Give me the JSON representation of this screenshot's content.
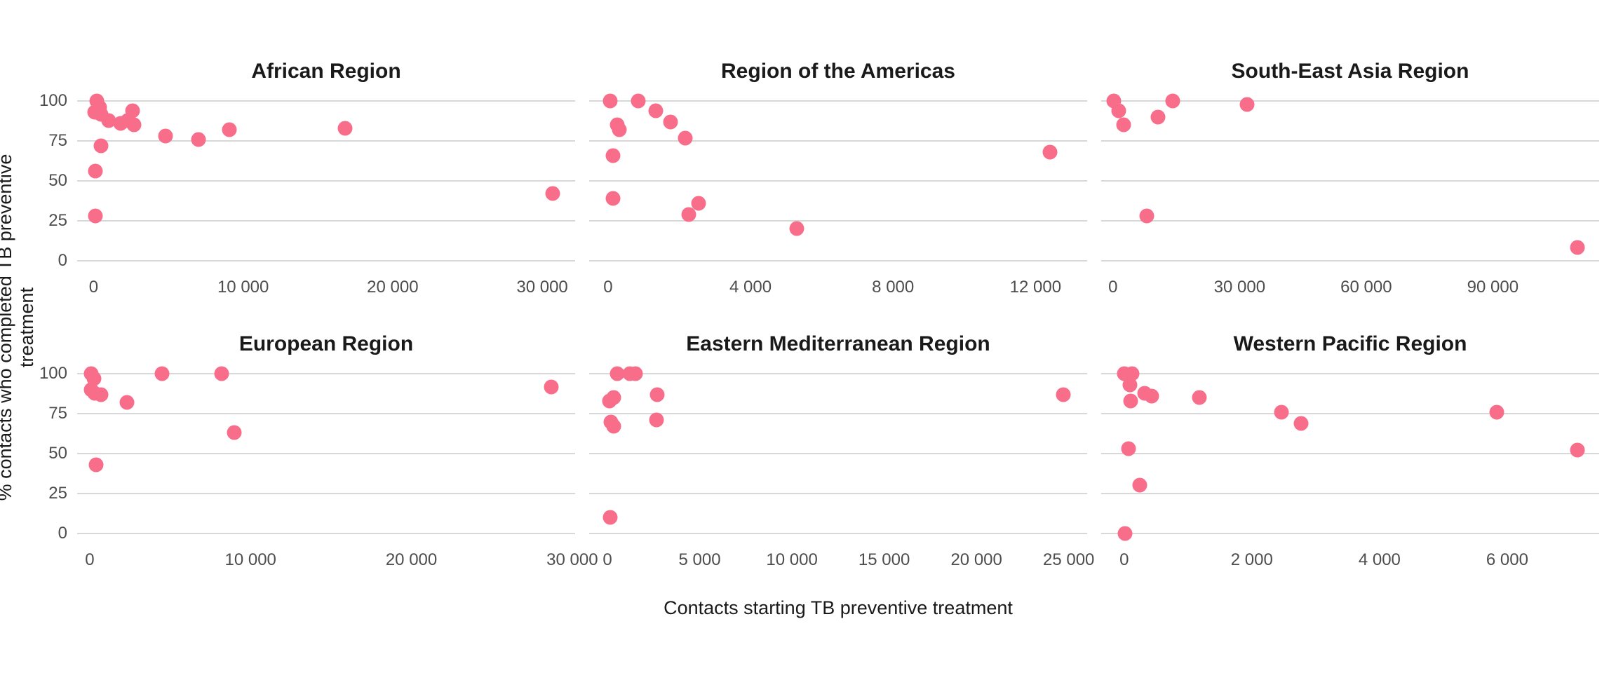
{
  "figure": {
    "x_axis_title": "Contacts starting TB preventive treatment",
    "y_axis_title": "% contacts who completed TB preventive treatment",
    "background_color": "#FFFFFF",
    "point_color": "#F86E8A",
    "gridline_color": "#D8D8D8",
    "title_color": "#1A1A1A",
    "tick_label_color": "#4D4D4D",
    "grid": "horizontal-only",
    "legend": "none"
  },
  "chart_data": [
    {
      "type": "scatter",
      "title": "African Region",
      "xlim": [
        -1100,
        32200
      ],
      "ylim": [
        -5,
        105
      ],
      "x_ticks": [
        0,
        10000,
        20000,
        30000
      ],
      "x_tick_labels": [
        "0",
        "10 000",
        "20 000",
        "30 000"
      ],
      "y_ticks": [
        0,
        25,
        50,
        75,
        100
      ],
      "y_tick_labels": [
        "0",
        "25",
        "50",
        "75",
        "100"
      ],
      "points": [
        [
          200,
          100
        ],
        [
          400,
          96
        ],
        [
          50,
          93
        ],
        [
          500,
          92
        ],
        [
          1000,
          88
        ],
        [
          1800,
          86
        ],
        [
          2300,
          88
        ],
        [
          2600,
          94
        ],
        [
          2700,
          85
        ],
        [
          500,
          72
        ],
        [
          100,
          56
        ],
        [
          100,
          28
        ],
        [
          4800,
          78
        ],
        [
          7000,
          76
        ],
        [
          9100,
          82
        ],
        [
          16800,
          83
        ],
        [
          30700,
          42
        ]
      ]
    },
    {
      "type": "scatter",
      "title": "Region of the Americas",
      "xlim": [
        -530,
        13450
      ],
      "ylim": [
        -5,
        105
      ],
      "x_ticks": [
        0,
        4000,
        8000,
        12000
      ],
      "x_tick_labels": [
        "0",
        "4 000",
        "8 000",
        "12 000"
      ],
      "y_ticks": [
        0,
        25,
        50,
        75,
        100
      ],
      "y_tick_labels": [
        "0",
        "25",
        "50",
        "75",
        "100"
      ],
      "points": [
        [
          70,
          100
        ],
        [
          850,
          100
        ],
        [
          1350,
          94
        ],
        [
          1750,
          87
        ],
        [
          2160,
          77
        ],
        [
          260,
          85
        ],
        [
          320,
          82
        ],
        [
          130,
          66
        ],
        [
          130,
          39
        ],
        [
          2260,
          29
        ],
        [
          2550,
          36
        ],
        [
          5300,
          20
        ],
        [
          12400,
          68
        ]
      ]
    },
    {
      "type": "scatter",
      "title": "South-East Asia Region",
      "xlim": [
        -2800,
        115200
      ],
      "ylim": [
        -5,
        105
      ],
      "x_ticks": [
        0,
        30000,
        60000,
        90000
      ],
      "x_tick_labels": [
        "0",
        "30 000",
        "60 000",
        "90 000"
      ],
      "y_ticks": [
        0,
        25,
        50,
        75,
        100
      ],
      "y_tick_labels": [
        "0",
        "25",
        "50",
        "75",
        "100"
      ],
      "points": [
        [
          200,
          100
        ],
        [
          1300,
          94
        ],
        [
          2500,
          85
        ],
        [
          10600,
          90
        ],
        [
          14200,
          100
        ],
        [
          31800,
          98
        ],
        [
          8000,
          28
        ],
        [
          110000,
          8
        ]
      ]
    },
    {
      "type": "scatter",
      "title": "European Region",
      "xlim": [
        -780,
        30180
      ],
      "ylim": [
        -5,
        105
      ],
      "x_ticks": [
        0,
        10000,
        20000,
        30000
      ],
      "x_tick_labels": [
        "0",
        "10 000",
        "20 000",
        "30 000"
      ],
      "y_ticks": [
        0,
        25,
        50,
        75,
        100
      ],
      "y_tick_labels": [
        "0",
        "25",
        "50",
        "75",
        "100"
      ],
      "points": [
        [
          100,
          100
        ],
        [
          250,
          97
        ],
        [
          100,
          90
        ],
        [
          300,
          88
        ],
        [
          700,
          87
        ],
        [
          2300,
          82
        ],
        [
          4500,
          100
        ],
        [
          8200,
          100
        ],
        [
          9000,
          63
        ],
        [
          400,
          43
        ],
        [
          28700,
          92
        ]
      ]
    },
    {
      "type": "scatter",
      "title": "Eastern Mediterranean Region",
      "xlim": [
        -990,
        26000
      ],
      "ylim": [
        -5,
        105
      ],
      "x_ticks": [
        0,
        5000,
        10000,
        15000,
        20000,
        25000
      ],
      "x_tick_labels": [
        "0",
        "5 000",
        "10 000",
        "15 000",
        "20 000",
        "25 000"
      ],
      "y_ticks": [
        0,
        25,
        50,
        75,
        100
      ],
      "y_tick_labels": [
        "0",
        "25",
        "50",
        "75",
        "100"
      ],
      "points": [
        [
          530,
          100
        ],
        [
          1200,
          100
        ],
        [
          1500,
          100
        ],
        [
          100,
          83
        ],
        [
          350,
          85
        ],
        [
          2700,
          87
        ],
        [
          200,
          70
        ],
        [
          350,
          67
        ],
        [
          2650,
          71
        ],
        [
          150,
          10
        ],
        [
          24700,
          87
        ]
      ]
    },
    {
      "type": "scatter",
      "title": "Western Pacific Region",
      "xlim": [
        -360,
        7440
      ],
      "ylim": [
        -5,
        105
      ],
      "x_ticks": [
        0,
        2000,
        4000,
        6000
      ],
      "x_tick_labels": [
        "0",
        "2 000",
        "4 000",
        "6 000"
      ],
      "y_ticks": [
        0,
        25,
        50,
        75,
        100
      ],
      "y_tick_labels": [
        "0",
        "25",
        "50",
        "75",
        "100"
      ],
      "points": [
        [
          0,
          100
        ],
        [
          120,
          100
        ],
        [
          90,
          93
        ],
        [
          100,
          83
        ],
        [
          320,
          88
        ],
        [
          430,
          86
        ],
        [
          1180,
          85
        ],
        [
          2460,
          76
        ],
        [
          2770,
          69
        ],
        [
          70,
          53
        ],
        [
          240,
          30
        ],
        [
          10,
          0
        ],
        [
          5840,
          76
        ],
        [
          7100,
          52
        ]
      ]
    }
  ]
}
